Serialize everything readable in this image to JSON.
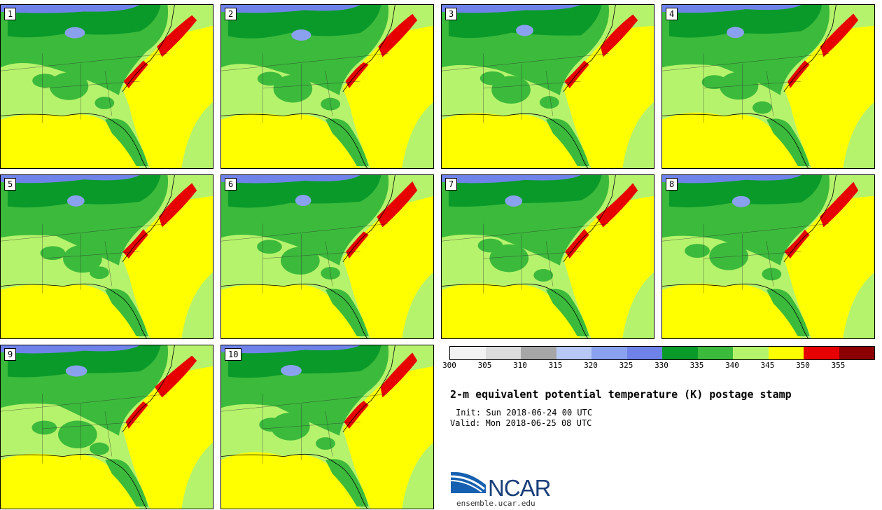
{
  "title": "2-m equivalent potential temperature (K) postage stamp",
  "init": "Init: Sun 2018-06-24 00 UTC",
  "valid": "Valid: Mon 2018-06-25 08 UTC",
  "members": [
    "1",
    "2",
    "3",
    "4",
    "5",
    "6",
    "7",
    "8",
    "9",
    "10"
  ],
  "colorbar": {
    "ticks": [
      "300",
      "305",
      "310",
      "315",
      "320",
      "325",
      "330",
      "335",
      "340",
      "345",
      "350",
      "355"
    ],
    "colors": [
      "#f2f2f2",
      "#dcdcdc",
      "#a6a6a6",
      "#b8c8f5",
      "#8aa1f0",
      "#6f82ea",
      "#0a9a2a",
      "#3cba3c",
      "#b6f36c",
      "#ffff00",
      "#e60000",
      "#8b0000"
    ]
  },
  "logo": {
    "name": "NCAR",
    "url": "ensemble.ucar.edu"
  }
}
